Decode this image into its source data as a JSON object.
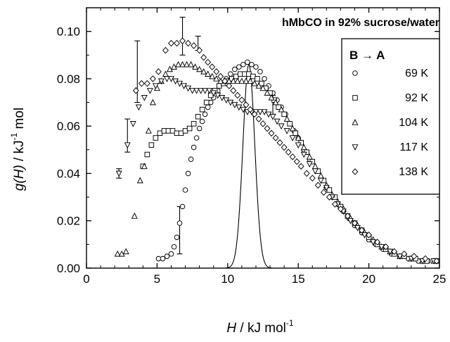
{
  "chart_data": {
    "type": "scatter",
    "title": "hMbCO in 92% sucrose/water",
    "xlabel": {
      "italic": "H",
      "unit": " / kJ mol",
      "sup": "-1"
    },
    "ylabel": {
      "italic": "g(H)",
      "unit": " /  kJ",
      "sup": "-1",
      "unit2": " mol"
    },
    "xlim": [
      0,
      25
    ],
    "ylim": [
      0,
      0.11
    ],
    "xticks": [
      "0",
      "5",
      "10",
      "15",
      "20",
      "25"
    ],
    "yticks": [
      "0.00",
      "0.02",
      "0.04",
      "0.06",
      "0.08",
      "0.10"
    ],
    "grid": false,
    "legend": {
      "title": "B → A",
      "placement": "top-right",
      "entries": [
        "69 K",
        "92 K",
        "104 K",
        "117 K",
        "138 K"
      ]
    },
    "series": [
      {
        "name": "69 K",
        "marker": "circle",
        "points": [
          [
            5.1,
            0.004
          ],
          [
            5.4,
            0.004
          ],
          [
            5.7,
            0.005
          ],
          [
            6.0,
            0.006
          ],
          [
            6.2,
            0.009
          ],
          [
            6.4,
            0.013
          ],
          [
            6.6,
            0.019
          ],
          [
            6.8,
            0.026
          ],
          [
            7.0,
            0.033
          ],
          [
            7.2,
            0.04
          ],
          [
            7.4,
            0.046
          ],
          [
            7.6,
            0.051
          ],
          [
            7.8,
            0.055
          ],
          [
            8.0,
            0.059
          ],
          [
            8.2,
            0.062
          ],
          [
            8.4,
            0.065
          ],
          [
            8.6,
            0.068
          ],
          [
            8.8,
            0.07
          ],
          [
            9.0,
            0.072
          ],
          [
            9.3,
            0.075
          ],
          [
            9.6,
            0.078
          ],
          [
            9.9,
            0.08
          ],
          [
            10.2,
            0.082
          ],
          [
            10.5,
            0.084
          ],
          [
            10.8,
            0.085
          ],
          [
            11.1,
            0.086
          ],
          [
            11.4,
            0.087
          ],
          [
            11.7,
            0.086
          ],
          [
            12.0,
            0.085
          ],
          [
            12.3,
            0.083
          ],
          [
            12.6,
            0.08
          ],
          [
            12.9,
            0.077
          ],
          [
            13.2,
            0.074
          ],
          [
            13.5,
            0.071
          ],
          [
            13.8,
            0.068
          ],
          [
            14.1,
            0.065
          ],
          [
            14.4,
            0.061
          ],
          [
            14.7,
            0.058
          ],
          [
            15.0,
            0.055
          ],
          [
            15.4,
            0.05
          ],
          [
            15.8,
            0.046
          ],
          [
            16.2,
            0.042
          ],
          [
            16.6,
            0.038
          ],
          [
            17.0,
            0.034
          ],
          [
            17.4,
            0.03
          ],
          [
            17.8,
            0.027
          ],
          [
            18.2,
            0.024
          ],
          [
            18.6,
            0.021
          ],
          [
            19.0,
            0.018
          ],
          [
            19.5,
            0.015
          ],
          [
            20.0,
            0.012
          ],
          [
            20.5,
            0.01
          ],
          [
            21.0,
            0.008
          ],
          [
            21.6,
            0.006
          ],
          [
            22.2,
            0.005
          ],
          [
            22.8,
            0.004
          ],
          [
            23.5,
            0.003
          ],
          [
            24.2,
            0.003
          ],
          [
            24.8,
            0.003
          ]
        ]
      },
      {
        "name": "92 K",
        "marker": "square",
        "points": [
          [
            4.0,
            0.043
          ],
          [
            4.3,
            0.048
          ],
          [
            4.6,
            0.052
          ],
          [
            4.9,
            0.055
          ],
          [
            5.2,
            0.057
          ],
          [
            5.5,
            0.058
          ],
          [
            5.8,
            0.058
          ],
          [
            6.1,
            0.058
          ],
          [
            6.4,
            0.057
          ],
          [
            6.7,
            0.057
          ],
          [
            7.0,
            0.058
          ],
          [
            7.3,
            0.059
          ],
          [
            7.6,
            0.061
          ],
          [
            7.9,
            0.064
          ],
          [
            8.2,
            0.067
          ],
          [
            8.5,
            0.07
          ],
          [
            8.8,
            0.073
          ],
          [
            9.1,
            0.075
          ],
          [
            9.4,
            0.077
          ],
          [
            9.7,
            0.078
          ],
          [
            10.0,
            0.079
          ],
          [
            10.3,
            0.08
          ],
          [
            10.6,
            0.081
          ],
          [
            10.9,
            0.082
          ],
          [
            11.2,
            0.082
          ],
          [
            11.5,
            0.082
          ],
          [
            11.8,
            0.081
          ],
          [
            12.1,
            0.08
          ],
          [
            12.4,
            0.078
          ],
          [
            12.7,
            0.076
          ],
          [
            13.0,
            0.074
          ],
          [
            13.3,
            0.071
          ],
          [
            13.6,
            0.068
          ],
          [
            14.0,
            0.065
          ],
          [
            14.4,
            0.061
          ],
          [
            14.8,
            0.057
          ],
          [
            15.2,
            0.053
          ],
          [
            15.6,
            0.049
          ],
          [
            16.0,
            0.045
          ],
          [
            16.4,
            0.041
          ],
          [
            16.8,
            0.037
          ],
          [
            17.2,
            0.033
          ],
          [
            17.6,
            0.03
          ],
          [
            18.0,
            0.026
          ],
          [
            18.5,
            0.022
          ],
          [
            19.0,
            0.019
          ],
          [
            19.5,
            0.016
          ],
          [
            20.0,
            0.013
          ],
          [
            20.6,
            0.01
          ],
          [
            21.2,
            0.008
          ],
          [
            21.8,
            0.006
          ],
          [
            22.5,
            0.005
          ],
          [
            23.3,
            0.004
          ],
          [
            24.1,
            0.003
          ],
          [
            24.8,
            0.003
          ]
        ]
      },
      {
        "name": "104 K",
        "marker": "triangle-up",
        "points": [
          [
            2.2,
            0.006
          ],
          [
            2.5,
            0.006
          ],
          [
            2.8,
            0.007
          ],
          [
            3.4,
            0.022
          ],
          [
            3.8,
            0.037
          ],
          [
            4.1,
            0.043
          ],
          [
            4.4,
            0.058
          ],
          [
            4.7,
            0.07
          ],
          [
            5.0,
            0.076
          ],
          [
            5.3,
            0.079
          ],
          [
            5.6,
            0.082
          ],
          [
            5.9,
            0.084
          ],
          [
            6.2,
            0.085
          ],
          [
            6.5,
            0.086
          ],
          [
            6.8,
            0.086
          ],
          [
            7.1,
            0.086
          ],
          [
            7.4,
            0.086
          ],
          [
            7.7,
            0.085
          ],
          [
            8.0,
            0.084
          ],
          [
            8.3,
            0.083
          ],
          [
            8.6,
            0.082
          ],
          [
            8.9,
            0.081
          ],
          [
            9.2,
            0.08
          ],
          [
            9.5,
            0.079
          ],
          [
            9.8,
            0.079
          ],
          [
            10.1,
            0.079
          ],
          [
            10.4,
            0.079
          ],
          [
            10.7,
            0.079
          ],
          [
            11.0,
            0.079
          ],
          [
            11.3,
            0.079
          ],
          [
            11.6,
            0.079
          ],
          [
            11.9,
            0.078
          ],
          [
            12.2,
            0.077
          ],
          [
            12.5,
            0.076
          ],
          [
            12.8,
            0.074
          ],
          [
            13.1,
            0.072
          ],
          [
            13.4,
            0.07
          ],
          [
            13.8,
            0.067
          ],
          [
            14.2,
            0.063
          ],
          [
            14.6,
            0.059
          ],
          [
            15.0,
            0.055
          ],
          [
            15.4,
            0.051
          ],
          [
            15.8,
            0.047
          ],
          [
            16.2,
            0.043
          ],
          [
            16.6,
            0.039
          ],
          [
            17.0,
            0.035
          ],
          [
            17.4,
            0.031
          ],
          [
            17.8,
            0.028
          ],
          [
            18.2,
            0.025
          ],
          [
            18.7,
            0.021
          ],
          [
            19.2,
            0.018
          ],
          [
            19.7,
            0.015
          ],
          [
            20.3,
            0.012
          ],
          [
            20.9,
            0.009
          ],
          [
            21.5,
            0.007
          ],
          [
            22.2,
            0.005
          ],
          [
            23.0,
            0.004
          ],
          [
            23.8,
            0.003
          ],
          [
            24.6,
            0.003
          ]
        ]
      },
      {
        "name": "117 K",
        "marker": "triangle-down",
        "points": [
          [
            2.3,
            0.04
          ],
          [
            2.9,
            0.052
          ],
          [
            3.3,
            0.061
          ],
          [
            3.7,
            0.068
          ],
          [
            4.1,
            0.072
          ],
          [
            4.5,
            0.075
          ],
          [
            4.9,
            0.077
          ],
          [
            5.3,
            0.079
          ],
          [
            5.7,
            0.08
          ],
          [
            6.0,
            0.08
          ],
          [
            6.3,
            0.079
          ],
          [
            6.6,
            0.078
          ],
          [
            6.9,
            0.077
          ],
          [
            7.2,
            0.076
          ],
          [
            7.5,
            0.075
          ],
          [
            7.8,
            0.075
          ],
          [
            8.1,
            0.075
          ],
          [
            8.4,
            0.075
          ],
          [
            8.7,
            0.075
          ],
          [
            9.0,
            0.074
          ],
          [
            9.3,
            0.073
          ],
          [
            9.6,
            0.072
          ],
          [
            9.9,
            0.071
          ],
          [
            10.2,
            0.07
          ],
          [
            10.5,
            0.069
          ],
          [
            10.8,
            0.068
          ],
          [
            11.1,
            0.067
          ],
          [
            11.4,
            0.066
          ],
          [
            11.7,
            0.066
          ],
          [
            12.0,
            0.066
          ],
          [
            12.3,
            0.066
          ],
          [
            12.6,
            0.066
          ],
          [
            12.9,
            0.065
          ],
          [
            13.2,
            0.064
          ],
          [
            13.5,
            0.062
          ],
          [
            13.8,
            0.06
          ],
          [
            14.2,
            0.058
          ],
          [
            14.6,
            0.055
          ],
          [
            15.0,
            0.052
          ],
          [
            15.4,
            0.048
          ],
          [
            15.8,
            0.044
          ],
          [
            16.2,
            0.041
          ],
          [
            16.6,
            0.037
          ],
          [
            17.0,
            0.034
          ],
          [
            17.4,
            0.03
          ],
          [
            17.8,
            0.027
          ],
          [
            18.2,
            0.024
          ],
          [
            18.7,
            0.02
          ],
          [
            19.2,
            0.017
          ],
          [
            19.7,
            0.014
          ],
          [
            20.3,
            0.011
          ],
          [
            20.9,
            0.009
          ],
          [
            21.5,
            0.007
          ],
          [
            22.2,
            0.005
          ],
          [
            23.0,
            0.004
          ],
          [
            23.8,
            0.003
          ],
          [
            24.6,
            0.003
          ]
        ]
      },
      {
        "name": "138 K",
        "marker": "diamond",
        "points": [
          [
            3.5,
            0.075
          ],
          [
            3.9,
            0.078
          ],
          [
            4.3,
            0.078
          ],
          [
            4.7,
            0.08
          ],
          [
            5.1,
            0.083
          ],
          [
            5.6,
            0.092
          ],
          [
            6.0,
            0.095
          ],
          [
            6.4,
            0.095
          ],
          [
            6.8,
            0.096
          ],
          [
            7.2,
            0.095
          ],
          [
            7.6,
            0.094
          ],
          [
            8.0,
            0.092
          ],
          [
            8.3,
            0.089
          ],
          [
            8.6,
            0.087
          ],
          [
            8.9,
            0.085
          ],
          [
            9.2,
            0.083
          ],
          [
            9.5,
            0.081
          ],
          [
            9.8,
            0.079
          ],
          [
            10.1,
            0.077
          ],
          [
            10.4,
            0.075
          ],
          [
            10.7,
            0.073
          ],
          [
            11.0,
            0.071
          ],
          [
            11.3,
            0.069
          ],
          [
            11.6,
            0.067
          ],
          [
            11.9,
            0.065
          ],
          [
            12.2,
            0.063
          ],
          [
            12.5,
            0.061
          ],
          [
            12.8,
            0.059
          ],
          [
            13.1,
            0.057
          ],
          [
            13.4,
            0.055
          ],
          [
            13.7,
            0.053
          ],
          [
            14.0,
            0.051
          ],
          [
            14.3,
            0.049
          ],
          [
            14.6,
            0.047
          ],
          [
            14.9,
            0.045
          ],
          [
            15.2,
            0.043
          ],
          [
            15.6,
            0.04
          ],
          [
            16.0,
            0.038
          ],
          [
            16.4,
            0.035
          ],
          [
            16.8,
            0.032
          ],
          [
            17.2,
            0.03
          ],
          [
            17.6,
            0.027
          ],
          [
            18.0,
            0.025
          ],
          [
            18.5,
            0.022
          ],
          [
            19.0,
            0.019
          ],
          [
            19.5,
            0.016
          ],
          [
            20.0,
            0.014
          ],
          [
            20.6,
            0.011
          ],
          [
            21.2,
            0.009
          ],
          [
            21.8,
            0.007
          ],
          [
            22.5,
            0.006
          ],
          [
            23.2,
            0.005
          ],
          [
            24.0,
            0.004
          ],
          [
            24.8,
            0.003
          ]
        ]
      }
    ],
    "error_bars": [
      {
        "x": 2.3,
        "y": 0.04,
        "err": 0.002
      },
      {
        "x": 2.9,
        "y": 0.056,
        "err": 0.007
      },
      {
        "x": 3.6,
        "y": 0.083,
        "err": 0.013
      },
      {
        "x": 6.6,
        "y": 0.016,
        "err": 0.01
      },
      {
        "x": 6.8,
        "y": 0.098,
        "err": 0.008
      },
      {
        "x": 7.9,
        "y": 0.095,
        "err": 0.003
      },
      {
        "x": 13.2,
        "y": 0.069,
        "err": 0.004
      }
    ],
    "curve": {
      "type": "gaussian",
      "center": 11.5,
      "sigma": 0.42,
      "amplitude": 0.086
    }
  }
}
